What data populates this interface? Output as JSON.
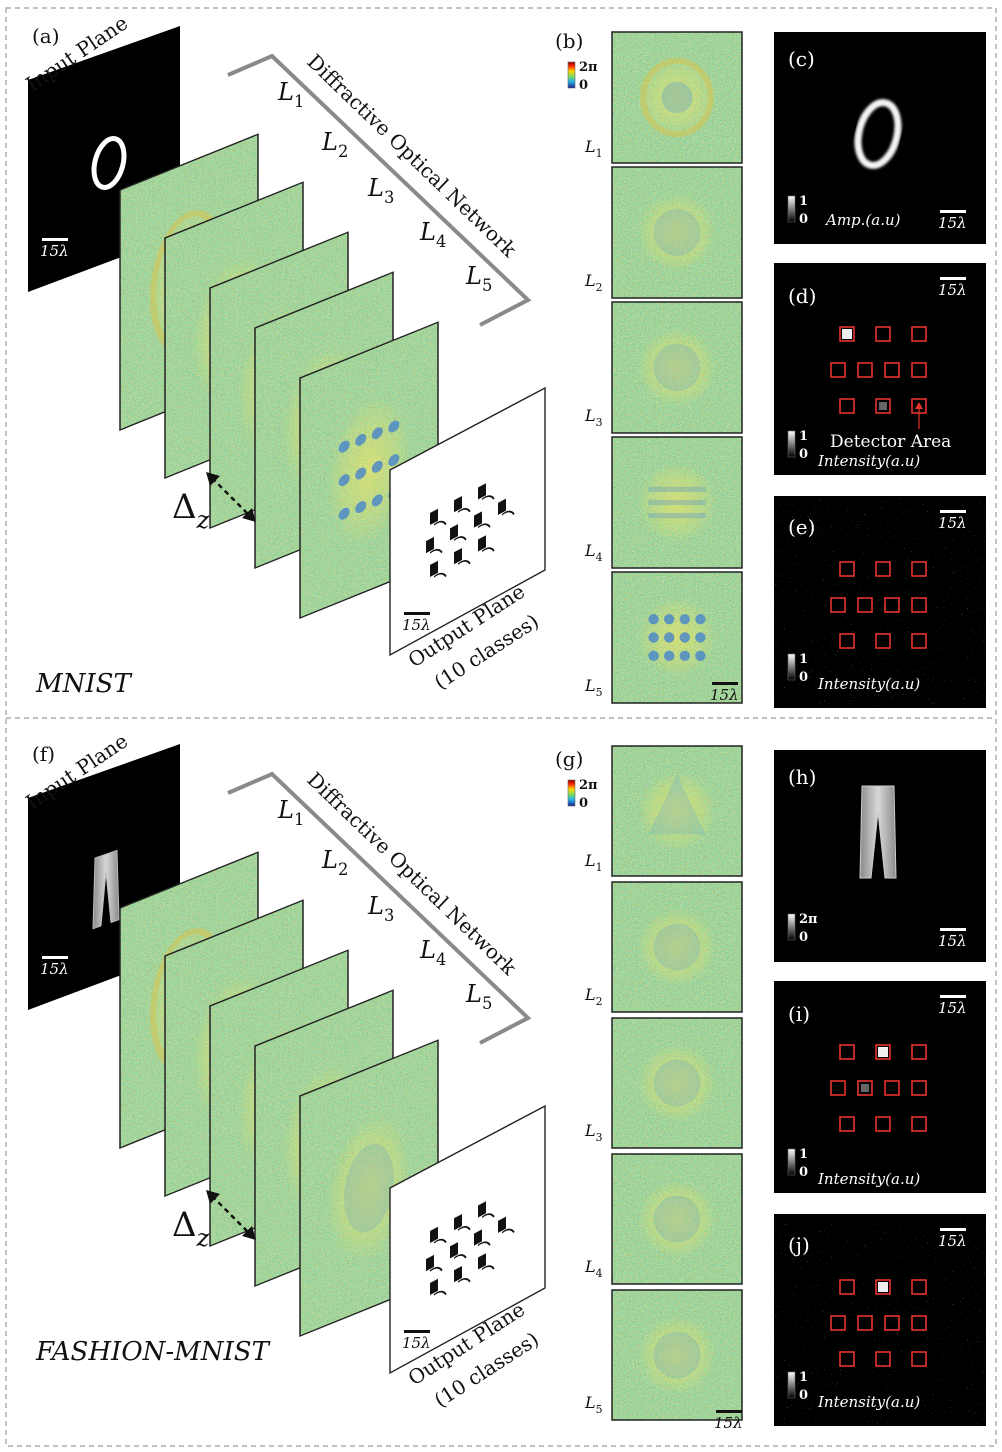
{
  "sections": [
    {
      "dataset_label": "MNIST",
      "diagram": {
        "panel_label": "(a)",
        "input_plane_label": "Input Plane",
        "network_label": "Diffractive Optical Network",
        "layer_names": [
          "L1",
          "L2",
          "L3",
          "L4",
          "L5"
        ],
        "layer_sub": [
          "1",
          "2",
          "3",
          "4",
          "5"
        ],
        "delta_label": "Δ",
        "delta_sub": "z",
        "output_plane_label_1": "Output Plane",
        "output_plane_label_2": "(10 classes)",
        "scale_label": "15λ",
        "input_content": "digit"
      },
      "phase_masks": {
        "panel_label": "(b)",
        "colorbar_max": "2π",
        "colorbar_min": "0",
        "layer_labels": [
          "L1",
          "L2",
          "L3",
          "L4",
          "L5"
        ],
        "scale_label": "15λ"
      },
      "input_panel": {
        "panel_label": "(c)",
        "colorbar_max": "1",
        "colorbar_min": "0",
        "colorbar_title": "Amp.(a.u)",
        "scale_label": "15λ"
      },
      "detector_panel": {
        "panel_label": "(d)",
        "colorbar_max": "1",
        "colorbar_min": "0",
        "colorbar_title": "Intensity(a.u)",
        "annotation": "Detector Area",
        "scale_label": "15λ",
        "bright_detector": 0,
        "dim_detector": 8
      },
      "output_panel": {
        "panel_label": "(e)",
        "colorbar_max": "1",
        "colorbar_min": "0",
        "colorbar_title": "Intensity(a.u)",
        "scale_label": "15λ"
      }
    },
    {
      "dataset_label": "FASHION-MNIST",
      "diagram": {
        "panel_label": "(f)",
        "input_plane_label": "Input Plane",
        "network_label": "Diffractive Optical Network",
        "layer_names": [
          "L1",
          "L2",
          "L3",
          "L4",
          "L5"
        ],
        "layer_sub": [
          "1",
          "2",
          "3",
          "4",
          "5"
        ],
        "delta_label": "Δ",
        "delta_sub": "z",
        "output_plane_label_1": "Output Plane",
        "output_plane_label_2": "(10 classes)",
        "scale_label": "15λ",
        "input_content": "trouser"
      },
      "phase_masks": {
        "panel_label": "(g)",
        "colorbar_max": "2π",
        "colorbar_min": "0",
        "layer_labels": [
          "L1",
          "L2",
          "L3",
          "L4",
          "L5"
        ],
        "scale_label": "15λ"
      },
      "input_panel": {
        "panel_label": "(h)",
        "colorbar_max": "2π",
        "colorbar_min": "0",
        "colorbar_title": "",
        "scale_label": "15λ"
      },
      "detector_panel": {
        "panel_label": "(i)",
        "colorbar_max": "1",
        "colorbar_min": "0",
        "colorbar_title": "Intensity(a.u)",
        "annotation": "",
        "scale_label": "15λ",
        "bright_detector": 1,
        "dim_detector": 4
      },
      "output_panel": {
        "panel_label": "(j)",
        "colorbar_max": "1",
        "colorbar_min": "0",
        "colorbar_title": "Intensity(a.u)",
        "scale_label": "15λ"
      }
    }
  ],
  "colors": {
    "detector_box": "#e8322c",
    "frame": "#222222",
    "bracket": "#8a8a8a",
    "divider": "#9a9a9a",
    "mask_base": "#9fc66a"
  }
}
